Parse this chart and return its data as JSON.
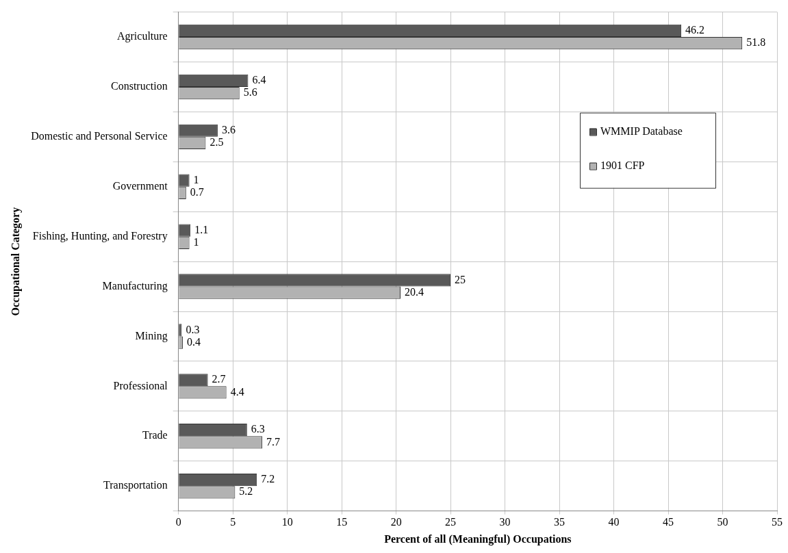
{
  "chart_data": {
    "type": "bar",
    "orientation": "horizontal",
    "xlabel": "Percent of all (Meaningful) Occupations",
    "ylabel": "Occupational Category",
    "categories": [
      "Agriculture",
      "Construction",
      "Domestic and Personal Service",
      "Government",
      "Fishing, Hunting, and Forestry",
      "Manufacturing",
      "Mining",
      "Professional",
      "Trade",
      "Transportation"
    ],
    "series": [
      {
        "name": "WMMIP Database",
        "color": "#595959",
        "values": [
          46.2,
          6.4,
          3.6,
          1,
          1.1,
          25,
          0.3,
          2.7,
          6.3,
          7.2
        ]
      },
      {
        "name": "1901 CFP",
        "color": "#b2b2b2",
        "values": [
          51.8,
          5.6,
          2.5,
          0.7,
          1,
          20.4,
          0.4,
          4.4,
          7.7,
          5.2
        ]
      }
    ],
    "xlim": [
      0,
      55
    ],
    "xticks": [
      0,
      5,
      10,
      15,
      20,
      25,
      30,
      35,
      40,
      45,
      50,
      55
    ],
    "grid": true,
    "legend": "top right",
    "data_labels": true
  }
}
